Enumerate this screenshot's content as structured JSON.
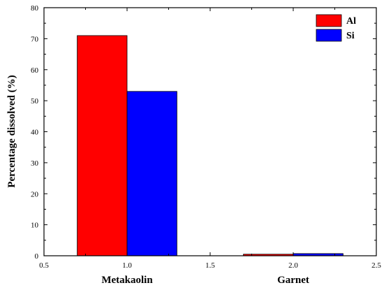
{
  "chart_data": {
    "type": "bar",
    "ylabel": "Percentage dissolved (%)",
    "xlim": [
      0.5,
      2.5
    ],
    "ylim": [
      0,
      80
    ],
    "x_ticks": [
      0.5,
      1.0,
      1.5,
      2.0,
      2.5
    ],
    "x_tick_labels": [
      "0.5",
      "1.0",
      "1.5",
      "2.0",
      "2.5"
    ],
    "y_ticks": [
      0,
      10,
      20,
      30,
      40,
      50,
      60,
      70,
      80
    ],
    "y_tick_labels": [
      "0",
      "10",
      "20",
      "30",
      "40",
      "50",
      "60",
      "70",
      "80"
    ],
    "categories": [
      "Metakaolin",
      "Garnet"
    ],
    "category_positions": [
      1.0,
      2.0
    ],
    "bar_width": 0.3,
    "series": [
      {
        "name": "Al",
        "color": "#ff0000",
        "values": [
          71,
          0.5
        ]
      },
      {
        "name": "Si",
        "color": "#0000ff",
        "values": [
          53,
          0.7
        ]
      }
    ],
    "legend_position": "top-right",
    "grid": false
  }
}
